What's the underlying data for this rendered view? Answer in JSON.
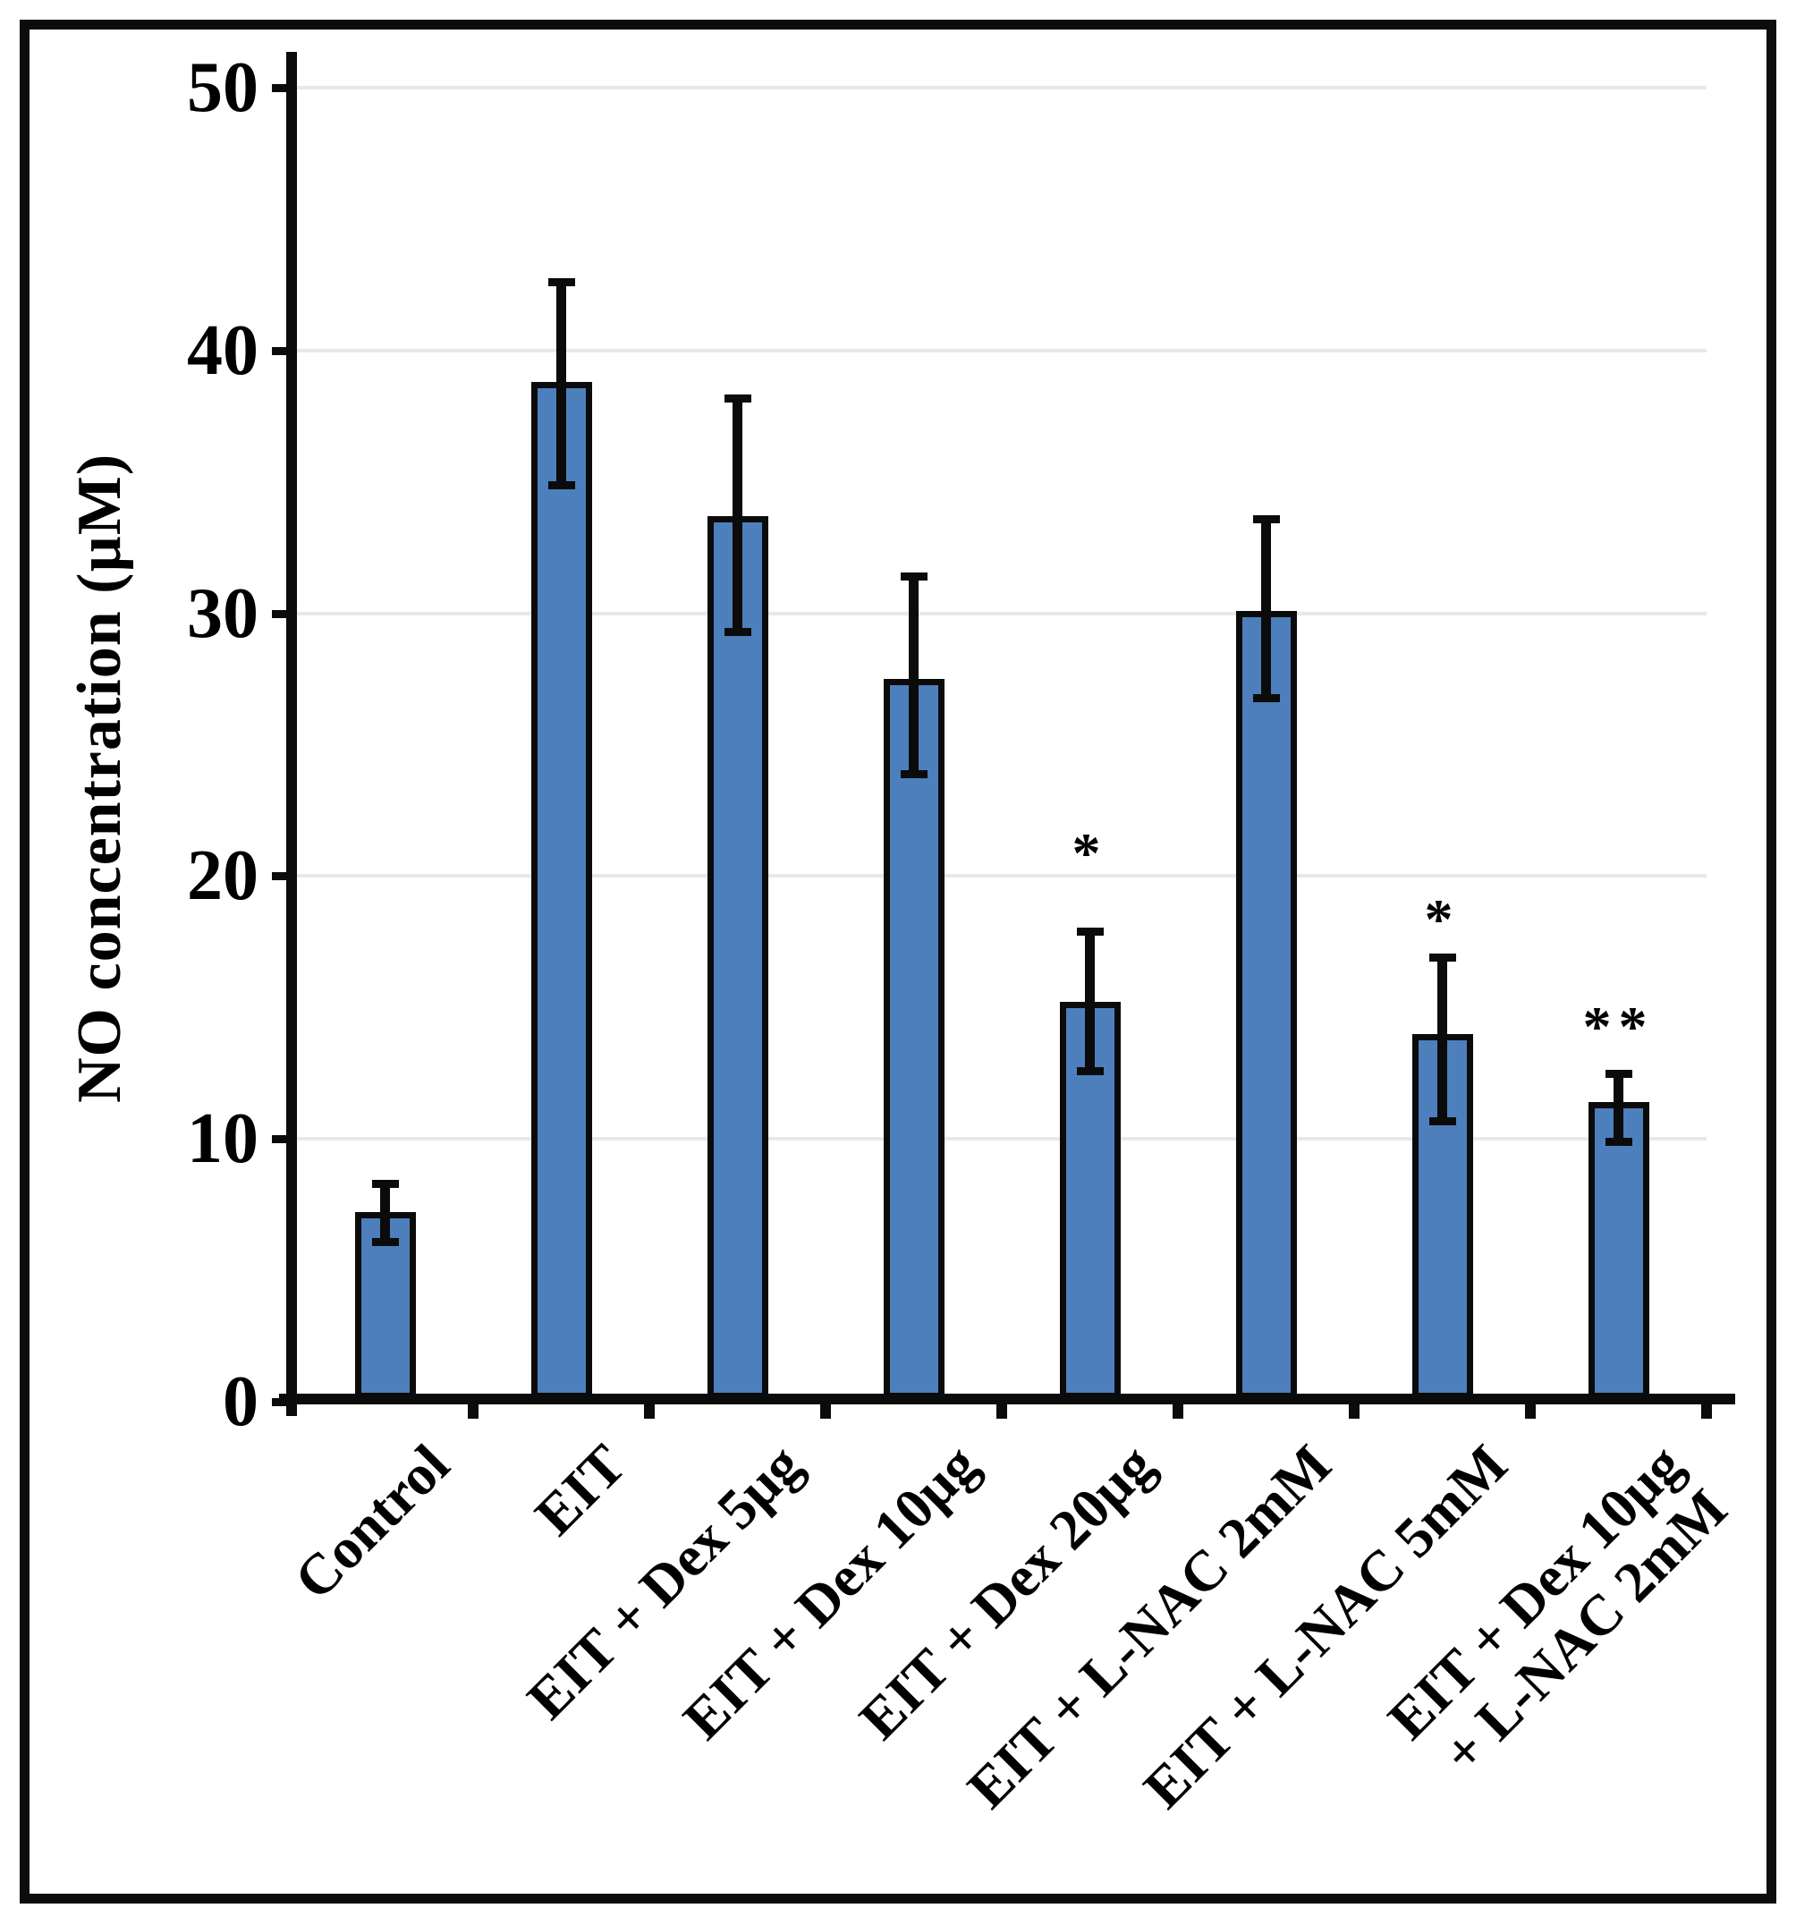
{
  "figure": {
    "background": "#ffffff",
    "border_color": "#0c0c0c"
  },
  "chart_data": {
    "type": "bar",
    "title": "",
    "xlabel": "",
    "ylabel": "NO concentration (µM)",
    "ylim": [
      0,
      50
    ],
    "yticks": [
      0,
      10,
      20,
      30,
      40,
      50
    ],
    "grid": "horizontal light-gray lines at each y tick, no legend",
    "bar_color": "#4d7fbc",
    "bar_edge_color": "#0b0b0b",
    "error_bar_color": "#0b0b0b",
    "categories": [
      "Control",
      "EIT",
      "EIT + Dex 5µg",
      "EIT + Dex 10µg",
      "EIT + Dex 20µg",
      "EIT + L-NAC 2mM",
      "EIT + L-NAC 5mM",
      "EIT + Dex 10µg + L-NAC 2mM"
    ],
    "category_label_lines": [
      [
        "Control"
      ],
      [
        "EIT"
      ],
      [
        "EIT + Dex 5µg"
      ],
      [
        "EIT + Dex 10µg"
      ],
      [
        "EIT + Dex 20µg"
      ],
      [
        "EIT + L-NAC 2mM"
      ],
      [
        "EIT + L-NAC 5mM"
      ],
      [
        "EIT + Dex 10µg",
        "+ L-NAC 2mM"
      ]
    ],
    "values": [
      7.2,
      38.8,
      33.7,
      27.5,
      15.2,
      30.1,
      14.0,
      11.4
    ],
    "error_low": [
      6.1,
      34.9,
      29.3,
      23.9,
      12.6,
      26.8,
      10.7,
      9.9
    ],
    "error_high": [
      8.3,
      42.6,
      38.2,
      31.4,
      17.9,
      33.6,
      16.9,
      12.5
    ],
    "significance": [
      "",
      "",
      "",
      "",
      "*",
      "",
      "*",
      "**"
    ],
    "significance_y": [
      null,
      null,
      null,
      null,
      21.2,
      null,
      18.7,
      14.6
    ]
  }
}
